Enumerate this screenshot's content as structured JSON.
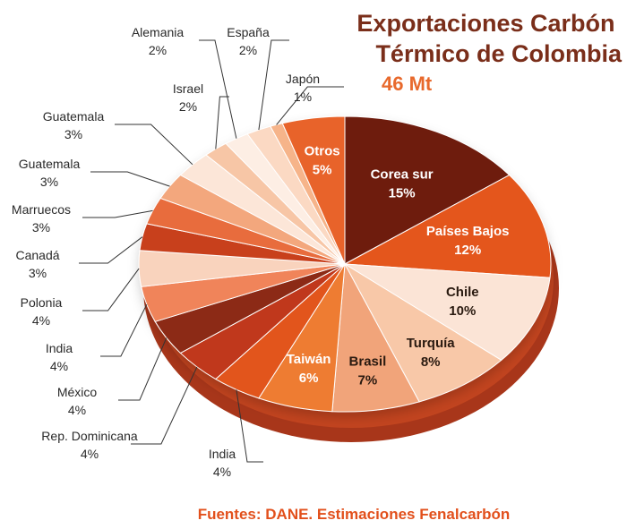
{
  "chart_data": {
    "type": "pie",
    "title": "Exportaciones Carbón\nTérmico de Colombia",
    "subtitle": "46 Mt",
    "source": "Fuentes: DANE. Estimaciones Fenalcarbón",
    "slices": [
      {
        "label": "Corea sur",
        "value": 15,
        "display": "15%",
        "color": "#6e1a10",
        "text": "#ffffff",
        "inside": true
      },
      {
        "label": "Países Bajos",
        "value": 12,
        "display": "12%",
        "color": "#e4571f",
        "text": "#ffffff",
        "inside": true
      },
      {
        "label": "Chile",
        "value": 10,
        "display": "10%",
        "color": "#fbe4d6",
        "text": "#2a1a10",
        "inside": true
      },
      {
        "label": "Turquía",
        "value": 8,
        "display": "8%",
        "color": "#f8c8a8",
        "text": "#2a1a10",
        "inside": true
      },
      {
        "label": "Brasil",
        "value": 7,
        "display": "7%",
        "color": "#f1a47a",
        "text": "#2a1a10",
        "inside": true
      },
      {
        "label": "Taiwán",
        "value": 6,
        "display": "6%",
        "color": "#ee7b32",
        "text": "#ffffff",
        "inside": true
      },
      {
        "label": "India",
        "value": 4,
        "display": "4%",
        "color": "#e2541e",
        "text": "#2a2a2a",
        "inside": false
      },
      {
        "label": "Rep. Dominicana",
        "value": 4,
        "display": "4%",
        "color": "#c0391a",
        "text": "#2a2a2a",
        "inside": false
      },
      {
        "label": "México",
        "value": 4,
        "display": "4%",
        "color": "#8c2a14",
        "text": "#2a2a2a",
        "inside": false
      },
      {
        "label": "India",
        "value": 4,
        "display": "4%",
        "color": "#f0845a",
        "text": "#2a2a2a",
        "inside": false
      },
      {
        "label": "Polonia",
        "value": 4,
        "display": "4%",
        "color": "#f9d3bd",
        "text": "#2a2a2a",
        "inside": false
      },
      {
        "label": "Canadá",
        "value": 3,
        "display": "3%",
        "color": "#c8401c",
        "text": "#2a2a2a",
        "inside": false
      },
      {
        "label": "Marruecos",
        "value": 3,
        "display": "3%",
        "color": "#e86c3c",
        "text": "#2a2a2a",
        "inside": false
      },
      {
        "label": "Guatemala",
        "value": 3,
        "display": "3%",
        "color": "#f3a77d",
        "text": "#2a2a2a",
        "inside": false
      },
      {
        "label": "Guatemala",
        "value": 3,
        "display": "3%",
        "color": "#fce6d8",
        "text": "#2a2a2a",
        "inside": false
      },
      {
        "label": "Israel",
        "value": 2,
        "display": "2%",
        "color": "#f7c6a6",
        "text": "#2a2a2a",
        "inside": false
      },
      {
        "label": "Alemania",
        "value": 2,
        "display": "2%",
        "color": "#fdeee4",
        "text": "#2a2a2a",
        "inside": false
      },
      {
        "label": "España",
        "value": 2,
        "display": "2%",
        "color": "#fbd9c3",
        "text": "#2a2a2a",
        "inside": false
      },
      {
        "label": "Japón",
        "value": 1,
        "display": "1%",
        "color": "#f6b48a",
        "text": "#2a2a2a",
        "inside": false
      },
      {
        "label": "Otros",
        "value": 5,
        "display": "5%",
        "color": "#e8632a",
        "text": "#ffffff",
        "inside": true
      }
    ]
  }
}
